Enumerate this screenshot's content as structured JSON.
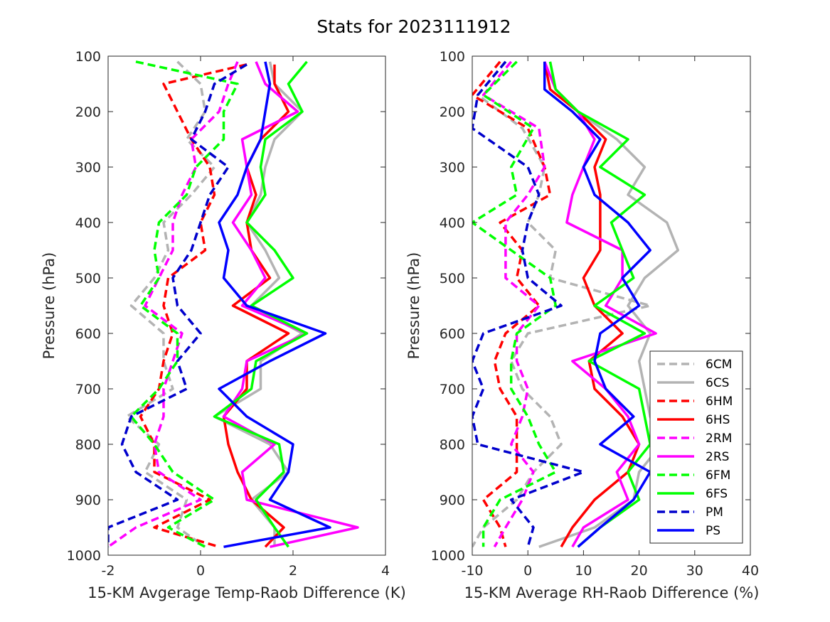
{
  "title": "Stats for 2023111912",
  "legend_position": "lower-right of right panel",
  "styles": {
    "6CM": {
      "color": "#b3b3b3",
      "dash": true
    },
    "6CS": {
      "color": "#b3b3b3",
      "dash": false
    },
    "6HM": {
      "color": "#ff0000",
      "dash": true
    },
    "6HS": {
      "color": "#ff0000",
      "dash": false
    },
    "2RM": {
      "color": "#ff00ff",
      "dash": true
    },
    "2RS": {
      "color": "#ff00ff",
      "dash": false
    },
    "6FM": {
      "color": "#00ff00",
      "dash": true
    },
    "6FS": {
      "color": "#00ff00",
      "dash": false
    },
    "PM": {
      "color": "#0000cc",
      "dash": true
    },
    "PS": {
      "color": "#0000ff",
      "dash": false
    }
  },
  "chart_data": [
    {
      "type": "line",
      "xlabel": "15-KM Avgerage Temp-Raob Difference (K)",
      "ylabel": "Pressure (hPa)",
      "xlim": [
        -2,
        4
      ],
      "ylim": [
        100,
        1000
      ],
      "y_reversed": true,
      "xticks": [
        "-2",
        "0",
        "2",
        "4"
      ],
      "yticks": [
        "100",
        "200",
        "300",
        "400",
        "500",
        "600",
        "700",
        "800",
        "900",
        "1000"
      ],
      "legend": [],
      "series": [
        {
          "name": "6CM",
          "p": [
            110,
            150,
            200,
            250,
            300,
            350,
            400,
            450,
            500,
            550,
            600,
            650,
            700,
            750,
            800,
            850,
            900,
            950,
            985
          ],
          "v": [
            -0.5,
            0.0,
            0.1,
            -0.3,
            0.3,
            -0.2,
            -0.8,
            -0.7,
            -1.0,
            -1.5,
            -0.8,
            -0.8,
            -0.6,
            -1.6,
            -0.9,
            -1.2,
            -0.3,
            -0.5,
            0.1
          ]
        },
        {
          "name": "6CS",
          "p": [
            110,
            150,
            200,
            250,
            300,
            350,
            400,
            450,
            500,
            550,
            600,
            650,
            700,
            750,
            800,
            850,
            900,
            950,
            985
          ],
          "v": [
            1.5,
            1.6,
            2.2,
            1.6,
            1.4,
            1.3,
            1.0,
            1.4,
            1.7,
            1.1,
            2.2,
            1.3,
            1.3,
            0.3,
            1.5,
            1.9,
            1.1,
            1.6,
            1.6
          ]
        },
        {
          "name": "6HM",
          "p": [
            115,
            150,
            200,
            250,
            300,
            350,
            400,
            450,
            500,
            550,
            600,
            650,
            700,
            750,
            800,
            850,
            900,
            950,
            985
          ],
          "v": [
            1.0,
            -0.8,
            -0.5,
            -0.2,
            0.2,
            0.3,
            0.0,
            0.1,
            -0.7,
            -0.8,
            -0.6,
            -0.8,
            -0.9,
            -1.3,
            -1.0,
            -1.0,
            0.2,
            -1.0,
            0.4
          ]
        },
        {
          "name": "6HS",
          "p": [
            115,
            150,
            200,
            250,
            300,
            350,
            400,
            450,
            500,
            550,
            600,
            650,
            700,
            750,
            800,
            850,
            900,
            950,
            985
          ],
          "v": [
            1.6,
            1.6,
            1.9,
            1.3,
            1.0,
            1.2,
            1.0,
            1.1,
            1.5,
            0.7,
            1.9,
            1.0,
            1.0,
            0.5,
            0.6,
            0.8,
            1.1,
            1.8,
            1.4
          ]
        },
        {
          "name": "2RM",
          "p": [
            110,
            150,
            200,
            250,
            300,
            350,
            400,
            450,
            500,
            550,
            600,
            650,
            700,
            750,
            800,
            850,
            900,
            950,
            985
          ],
          "v": [
            0.8,
            0.6,
            0.4,
            -0.2,
            -0.1,
            -0.4,
            -0.6,
            -0.6,
            -0.9,
            -1.2,
            -0.4,
            -0.6,
            -0.8,
            -0.8,
            -1.0,
            -0.9,
            0.0,
            -1.4,
            -2.0
          ]
        },
        {
          "name": "2RS",
          "p": [
            110,
            150,
            200,
            250,
            300,
            350,
            400,
            450,
            500,
            550,
            600,
            650,
            700,
            750,
            800,
            850,
            900,
            950,
            985
          ],
          "v": [
            1.2,
            1.4,
            2.1,
            0.9,
            1.0,
            1.1,
            0.7,
            1.1,
            1.4,
            0.9,
            2.3,
            1.0,
            0.9,
            0.5,
            1.6,
            0.9,
            1.0,
            3.4,
            1.5
          ]
        },
        {
          "name": "6FM",
          "p": [
            110,
            150,
            200,
            250,
            300,
            350,
            400,
            450,
            500,
            550,
            600,
            650,
            700,
            750,
            800,
            850,
            900,
            950,
            985
          ],
          "v": [
            -1.4,
            0.8,
            0.5,
            0.5,
            -0.1,
            -0.3,
            -0.9,
            -1.0,
            -0.9,
            -1.3,
            -0.5,
            -0.5,
            -0.9,
            -1.5,
            -1.0,
            -0.6,
            0.3,
            -0.7,
            0.1
          ]
        },
        {
          "name": "6FS",
          "p": [
            110,
            150,
            200,
            250,
            300,
            350,
            400,
            450,
            500,
            550,
            600,
            650,
            700,
            750,
            800,
            850,
            900,
            950,
            985
          ],
          "v": [
            2.3,
            1.9,
            2.2,
            1.4,
            1.3,
            1.4,
            1.0,
            1.6,
            2.0,
            1.1,
            2.3,
            1.2,
            1.1,
            0.3,
            1.7,
            1.8,
            1.2,
            1.6,
            1.9
          ]
        },
        {
          "name": "PM",
          "p": [
            115,
            150,
            200,
            250,
            300,
            350,
            400,
            450,
            500,
            550,
            600,
            650,
            700,
            750,
            800,
            850,
            900,
            950,
            985
          ],
          "v": [
            1.0,
            0.3,
            0.1,
            -0.2,
            0.6,
            0.2,
            0.0,
            -0.2,
            -0.6,
            -0.5,
            0.0,
            -0.5,
            -0.3,
            -1.5,
            -1.7,
            -1.4,
            -0.5,
            -2.0,
            -2.0
          ]
        },
        {
          "name": "PS",
          "p": [
            110,
            150,
            200,
            250,
            300,
            350,
            400,
            450,
            500,
            550,
            600,
            650,
            700,
            750,
            800,
            850,
            900,
            950,
            985
          ],
          "v": [
            1.4,
            1.5,
            1.4,
            1.3,
            1.0,
            0.8,
            0.4,
            0.6,
            0.5,
            1.0,
            2.7,
            1.5,
            0.4,
            1.0,
            2.0,
            1.9,
            1.5,
            2.8,
            0.5
          ]
        }
      ]
    },
    {
      "type": "line",
      "xlabel": "15-KM Average RH-Raob Difference (%)",
      "ylabel": "Pressure (hPa)",
      "xlim": [
        -10,
        40
      ],
      "ylim": [
        100,
        1000
      ],
      "y_reversed": true,
      "xticks": [
        "-10",
        "0",
        "10",
        "20",
        "30",
        "40"
      ],
      "yticks": [
        "100",
        "200",
        "300",
        "400",
        "500",
        "600",
        "700",
        "800",
        "900",
        "1000"
      ],
      "legend": [
        "6CM",
        "6CS",
        "6HM",
        "6HS",
        "2RM",
        "2RS",
        "6FM",
        "6FS",
        "PM",
        "PS"
      ],
      "series": [
        {
          "name": "6CM",
          "p": [
            110,
            170,
            230,
            300,
            350,
            400,
            450,
            500,
            550,
            600,
            650,
            700,
            750,
            800,
            850,
            900,
            950,
            985
          ],
          "v": [
            -4,
            -9,
            -1,
            3,
            2,
            0,
            5,
            4,
            22,
            0,
            -3,
            -1,
            4,
            6,
            1,
            -2,
            -8,
            -10
          ]
        },
        {
          "name": "6CS",
          "p": [
            110,
            160,
            200,
            250,
            300,
            350,
            400,
            450,
            500,
            550,
            600,
            650,
            700,
            750,
            800,
            850,
            900,
            950,
            985
          ],
          "v": [
            4,
            5,
            9,
            16,
            21,
            18,
            25,
            27,
            21,
            18,
            22,
            20,
            21,
            22,
            24,
            20,
            19,
            12,
            2
          ]
        },
        {
          "name": "6HM",
          "p": [
            110,
            170,
            230,
            300,
            350,
            400,
            450,
            500,
            550,
            600,
            650,
            700,
            750,
            800,
            850,
            900,
            950,
            985
          ],
          "v": [
            -5,
            -10,
            0,
            3,
            4,
            -5,
            -1,
            -2,
            2,
            -4,
            -6,
            -5,
            -2,
            -2,
            -2,
            -8,
            -5,
            -4
          ]
        },
        {
          "name": "6HS",
          "p": [
            110,
            160,
            200,
            250,
            300,
            350,
            400,
            450,
            500,
            550,
            600,
            650,
            700,
            750,
            800,
            850,
            900,
            950,
            985
          ],
          "v": [
            3,
            4,
            9,
            14,
            12,
            13,
            13,
            13,
            10,
            12,
            17,
            11,
            12,
            17,
            20,
            18,
            12,
            8,
            6
          ]
        },
        {
          "name": "2RM",
          "p": [
            110,
            170,
            230,
            300,
            350,
            400,
            450,
            500,
            550,
            600,
            650,
            700,
            750,
            800,
            850,
            900,
            950,
            985
          ],
          "v": [
            -3,
            -8,
            2,
            3,
            0,
            -4,
            -4,
            -4,
            2,
            -2,
            -2,
            0,
            -1,
            -3,
            1,
            -1,
            -4,
            -6
          ]
        },
        {
          "name": "2RS",
          "p": [
            110,
            160,
            200,
            250,
            300,
            350,
            400,
            450,
            500,
            550,
            600,
            650,
            700,
            750,
            800,
            850,
            900,
            950,
            985
          ],
          "v": [
            3,
            5,
            9,
            12,
            10,
            8,
            7,
            17,
            17,
            14,
            23,
            8,
            14,
            18,
            20,
            16,
            18,
            10,
            8
          ]
        },
        {
          "name": "6FM",
          "p": [
            110,
            170,
            230,
            300,
            350,
            400,
            450,
            500,
            550,
            600,
            650,
            700,
            750,
            800,
            850,
            900,
            950,
            985
          ],
          "v": [
            -2,
            -8,
            1,
            -3,
            -2,
            -10,
            -3,
            4,
            5,
            -2,
            -3,
            -3,
            0,
            2,
            5,
            -5,
            -8,
            -8
          ]
        },
        {
          "name": "6FS",
          "p": [
            110,
            160,
            200,
            250,
            300,
            350,
            400,
            450,
            500,
            550,
            600,
            650,
            700,
            750,
            800,
            850,
            900,
            950,
            985
          ],
          "v": [
            4,
            5,
            9,
            18,
            13,
            21,
            15,
            17,
            19,
            12,
            21,
            11,
            20,
            21,
            22,
            18,
            20,
            13,
            9
          ]
        },
        {
          "name": "PM",
          "p": [
            110,
            170,
            230,
            300,
            350,
            400,
            450,
            500,
            550,
            600,
            650,
            700,
            750,
            800,
            850,
            900,
            950,
            985
          ],
          "v": [
            -4,
            -9,
            -10,
            0,
            2,
            0,
            -1,
            0,
            6,
            -8,
            -10,
            -8,
            -10,
            -9,
            10,
            -3,
            1,
            0
          ]
        },
        {
          "name": "PS",
          "p": [
            110,
            160,
            200,
            250,
            300,
            350,
            400,
            450,
            500,
            550,
            600,
            650,
            700,
            750,
            800,
            850,
            900,
            950,
            985
          ],
          "v": [
            3,
            3,
            8,
            13,
            10,
            12,
            18,
            22,
            17,
            20,
            13,
            12,
            14,
            19,
            13,
            22,
            19,
            13,
            9
          ]
        }
      ]
    }
  ]
}
